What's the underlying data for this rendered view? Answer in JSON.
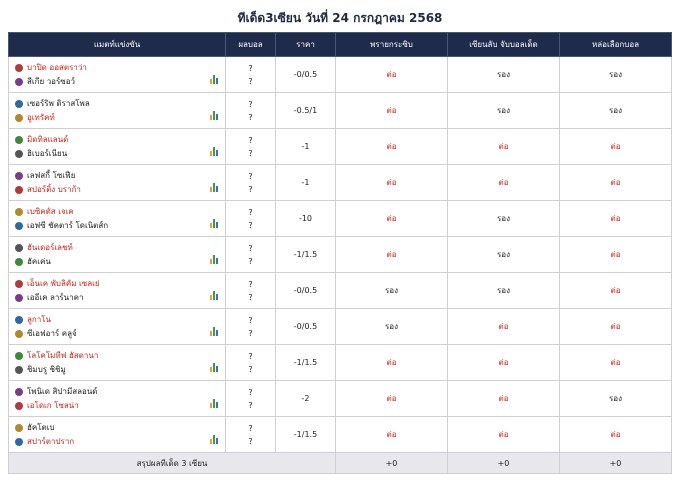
{
  "page_title": "ทีเด็ด3เซียน วันที่ 24 กรกฎาคม 2568",
  "headers": {
    "match": "แมตท์แข่งขัน",
    "result": "ผลบอล",
    "price": "ราคา",
    "expert1": "พรายกระซิบ",
    "expert2": "เซียนลับ จับบอลเด็ด",
    "expert3": "หล่อเลือกบอล"
  },
  "colors": {
    "header_bg": "#1f2b4a",
    "tip_red": "#c8251b",
    "footer_bg": "#e8e8ec"
  },
  "rows": [
    {
      "home": "บาปิด ออสตราว่า",
      "away": "สีเกีย วอร์ซอว์",
      "home_fav": true,
      "away_fav": false,
      "home_icon": "club-crest-icon",
      "away_icon": "club-crest-icon",
      "score_home": "?",
      "score_away": "?",
      "price": "-0/0.5",
      "tip1": "ต่อ",
      "tip2": "รอง",
      "tip3": "รอง"
    },
    {
      "home": "เซอร์ริพ ดิราสโพล",
      "away": "อูเทรัคท์",
      "home_fav": false,
      "away_fav": true,
      "home_icon": "club-crest-icon",
      "away_icon": "club-crest-icon",
      "score_home": "?",
      "score_away": "?",
      "price": "-0.5/1",
      "tip1": "ต่อ",
      "tip2": "รอง",
      "tip3": "รอง"
    },
    {
      "home": "มิดทิลแลนด์",
      "away": "ฮิเบอร์เนียน",
      "home_fav": true,
      "away_fav": false,
      "home_icon": "club-crest-icon",
      "away_icon": "club-crest-icon",
      "score_home": "?",
      "score_away": "?",
      "price": "-1",
      "tip1": "ต่อ",
      "tip2": "ต่อ",
      "tip3": "ต่อ"
    },
    {
      "home": "เลฟสกี้ โซเฟีย",
      "away": "สปอร์ติ้ง บราก้า",
      "home_fav": false,
      "away_fav": true,
      "home_icon": "club-crest-icon",
      "away_icon": "club-crest-icon",
      "score_home": "?",
      "score_away": "?",
      "price": "-1",
      "tip1": "ต่อ",
      "tip2": "ต่อ",
      "tip3": "ต่อ"
    },
    {
      "home": "เบซิคตัส เจเค",
      "away": "เอฟซี ชัคตาร์ โดเนิตส์ก",
      "home_fav": true,
      "away_fav": false,
      "home_icon": "club-crest-icon",
      "away_icon": "club-crest-icon",
      "score_home": "?",
      "score_away": "?",
      "price": "-10",
      "tip1": "ต่อ",
      "tip2": "รอง",
      "tip3": "ต่อ"
    },
    {
      "home": "ฮันเดอร์เลชท์",
      "away": "ฮัคเค่น",
      "home_fav": true,
      "away_fav": false,
      "home_icon": "club-crest-icon",
      "away_icon": "club-crest-icon",
      "score_home": "?",
      "score_away": "?",
      "price": "-1/1.5",
      "tip1": "ต่อ",
      "tip2": "รอง",
      "tip3": "ต่อ"
    },
    {
      "home": "เอ็นเค พับลิคัม เซลเย่",
      "away": "เออีเค ลาร์นาคา",
      "home_fav": true,
      "away_fav": false,
      "home_icon": "club-crest-icon",
      "away_icon": "club-crest-icon",
      "score_home": "?",
      "score_away": "?",
      "price": "-0/0.5",
      "tip1": "รอง",
      "tip2": "รอง",
      "tip3": "ต่อ"
    },
    {
      "home": "ลูกาโน",
      "away": "ซีเอฟอาร์ คลูจ์",
      "home_fav": true,
      "away_fav": false,
      "home_icon": "club-crest-icon",
      "away_icon": "club-crest-icon",
      "score_home": "?",
      "score_away": "?",
      "price": "-0/0.5",
      "tip1": "รอง",
      "tip2": "ต่อ",
      "tip3": "ต่อ"
    },
    {
      "home": "โลโคโมทีฟ ฮัสตานา",
      "away": "ชิมบรู ชิชิมู",
      "home_fav": true,
      "away_fav": false,
      "home_icon": "club-crest-icon",
      "away_icon": "club-crest-icon",
      "score_home": "?",
      "score_away": "?",
      "price": "-1/1.5",
      "tip1": "ต่อ",
      "tip2": "ต่อ",
      "tip3": "ต่อ"
    },
    {
      "home": "โพนิเด สิปามีสลอนด์",
      "away": "เอโดเก โซลน่า",
      "home_fav": false,
      "away_fav": true,
      "home_icon": "club-crest-icon",
      "away_icon": "club-crest-icon",
      "score_home": "?",
      "score_away": "?",
      "price": "-2",
      "tip1": "ต่อ",
      "tip2": "ต่อ",
      "tip3": "รอง"
    },
    {
      "home": "ฮัคโตเบ",
      "away": "สปาร์ตาปราก",
      "home_fav": false,
      "away_fav": true,
      "home_icon": "club-crest-icon",
      "away_icon": "club-crest-icon",
      "score_home": "?",
      "score_away": "?",
      "price": "-1/1.5",
      "tip1": "ต่อ",
      "tip2": "ต่อ",
      "tip3": "ต่อ"
    }
  ],
  "footer": {
    "label": "สรุปผลทีเด็ด 3 เซียน",
    "sum1": "+0",
    "sum2": "+0",
    "sum3": "+0"
  }
}
